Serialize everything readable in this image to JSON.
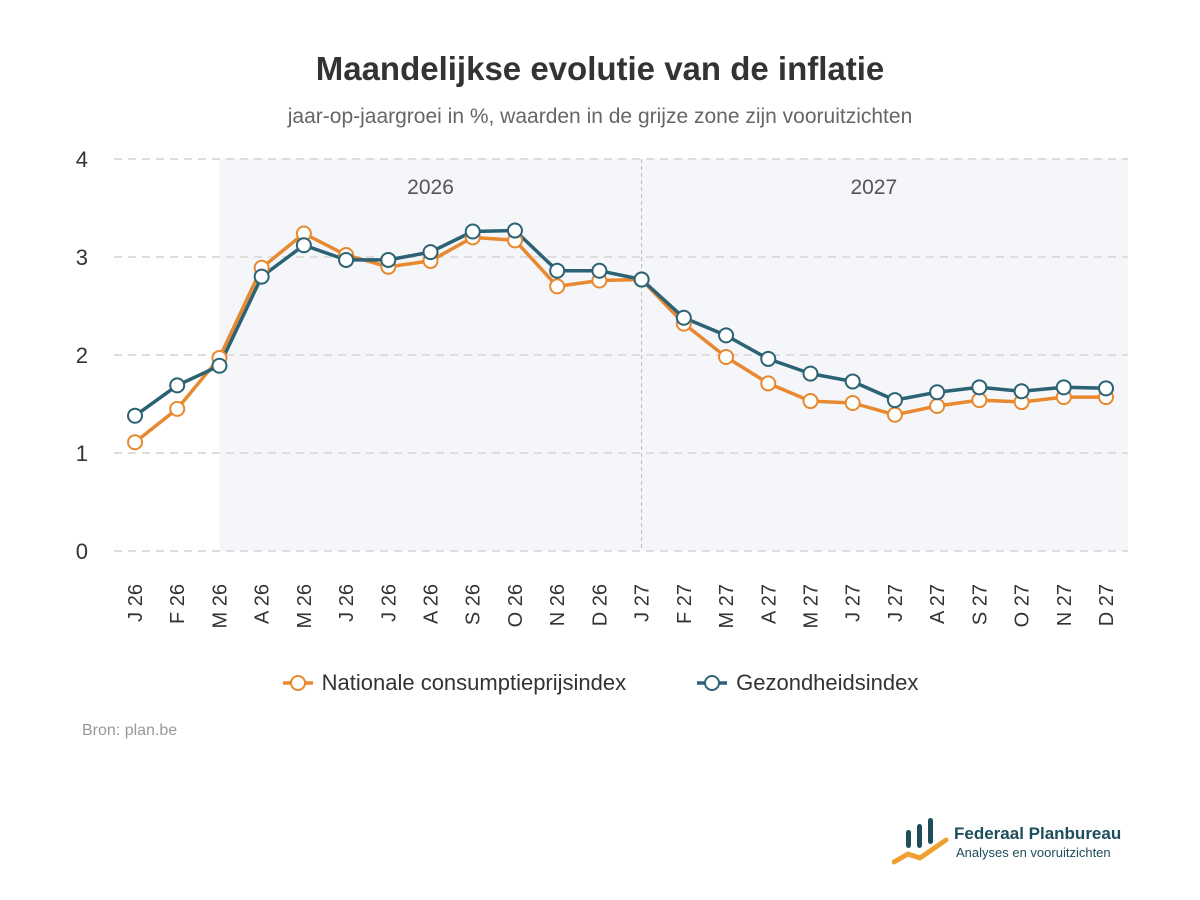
{
  "chart_data": {
    "type": "line",
    "title": "Maandelijkse evolutie van de inflatie",
    "subtitle": "jaar-op-jaargroei in %, waarden in de grijze zone zijn vooruitzichten",
    "categories": [
      "J 26",
      "F 26",
      "M 26",
      "A 26",
      "M 26",
      "J 26",
      "J 26",
      "A 26",
      "S 26",
      "O 26",
      "N 26",
      "D 26",
      "J 27",
      "F 27",
      "M 27",
      "A 27",
      "M 27",
      "J 27",
      "J 27",
      "A 27",
      "S 27",
      "O 27",
      "N 27",
      "D 27"
    ],
    "series": [
      {
        "name": "Nationale consumptieprijsindex",
        "color": "#e8892f",
        "values": [
          1.11,
          1.45,
          1.97,
          2.89,
          3.24,
          3.02,
          2.9,
          2.96,
          3.2,
          3.17,
          2.7,
          2.76,
          2.77,
          2.32,
          1.98,
          1.71,
          1.53,
          1.51,
          1.39,
          1.48,
          1.54,
          1.52,
          1.57,
          1.57
        ]
      },
      {
        "name": "Gezondheidsindex",
        "color": "#2b6274",
        "values": [
          1.38,
          1.69,
          1.89,
          2.8,
          3.12,
          2.97,
          2.97,
          3.05,
          3.26,
          3.27,
          2.86,
          2.86,
          2.77,
          2.38,
          2.2,
          1.96,
          1.81,
          1.73,
          1.54,
          1.62,
          1.67,
          1.63,
          1.67,
          1.66
        ]
      }
    ],
    "ylim": [
      0,
      4
    ],
    "yticks": [
      0,
      1,
      2,
      3,
      4
    ],
    "grid": true,
    "forecast_start_index": 2,
    "year_labels": [
      {
        "label": "2026",
        "from_index": 2,
        "to_index": 12
      },
      {
        "label": "2027",
        "from_index": 12,
        "to_index": 23
      }
    ],
    "year_divider_index": 12,
    "legend_position": "bottom-center",
    "xlabel": "",
    "ylabel": ""
  },
  "source": "Bron: plan.be",
  "logo": {
    "name": "Federaal Planbureau",
    "tagline": "Analyses en vooruitzichten"
  },
  "colors": {
    "forecast_zone": "#f4f6f9",
    "gridline": "#dddddd",
    "logo_teal": "#1e4d5c",
    "logo_orange": "#f0a030"
  }
}
